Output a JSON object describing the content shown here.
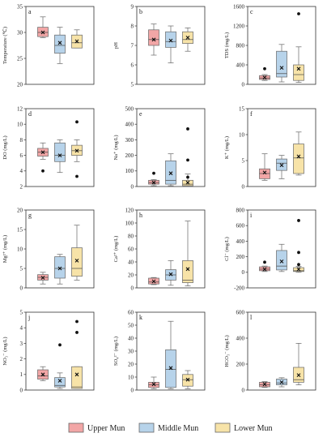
{
  "colors": {
    "upper": "#f2a6a6",
    "middle": "#b7d3ea",
    "lower": "#f7e3a8",
    "stroke": "#666666"
  },
  "legend": {
    "labels": [
      "Upper Mun",
      "Middle Mun",
      "Lower Mun"
    ]
  },
  "chart_data": [
    {
      "type": "box",
      "letter": "a",
      "ylabel": "Temperature (℃)",
      "ylim": [
        20,
        35
      ],
      "ticks": [
        20,
        25,
        30,
        35
      ],
      "categories": [
        "Upper Mun",
        "Middle Mun",
        "Lower Mun"
      ],
      "boxes": [
        {
          "min": 29.0,
          "q1": 29.2,
          "median": 30.0,
          "q3": 31.0,
          "max": 33.0,
          "mean": 30.0,
          "outliers": []
        },
        {
          "min": 24.0,
          "q1": 26.0,
          "median": 27.5,
          "q3": 29.5,
          "max": 31.0,
          "mean": 28.0,
          "outliers": []
        },
        {
          "min": 27.0,
          "q1": 27.0,
          "median": 28.0,
          "q3": 29.5,
          "max": 30.5,
          "mean": 28.3,
          "outliers": []
        }
      ]
    },
    {
      "type": "box",
      "letter": "b",
      "ylabel": "pH",
      "ylim": [
        5,
        9
      ],
      "ticks": [
        5,
        6,
        7,
        8,
        9
      ],
      "categories": [
        "Upper Mun",
        "Middle Mun",
        "Lower Mun"
      ],
      "boxes": [
        {
          "min": 6.5,
          "q1": 7.0,
          "median": 7.3,
          "q3": 7.8,
          "max": 8.1,
          "mean": 7.3,
          "outliers": []
        },
        {
          "min": 6.1,
          "q1": 6.9,
          "median": 7.2,
          "q3": 7.7,
          "max": 8.0,
          "mean": 7.25,
          "outliers": []
        },
        {
          "min": 6.7,
          "q1": 7.1,
          "median": 7.3,
          "q3": 7.7,
          "max": 7.9,
          "mean": 7.4,
          "outliers": []
        }
      ]
    },
    {
      "type": "box",
      "letter": "c",
      "ylabel": "TDS (mg/L)",
      "ylim": [
        0,
        1600
      ],
      "ticks": [
        0,
        400,
        800,
        1200,
        1600
      ],
      "categories": [
        "Upper Mun",
        "Middle Mun",
        "Lower Mun"
      ],
      "boxes": [
        {
          "min": 80,
          "q1": 100,
          "median": 130,
          "q3": 180,
          "max": 200,
          "mean": 140,
          "outliers": [
            320
          ]
        },
        {
          "min": 50,
          "q1": 150,
          "median": 220,
          "q3": 680,
          "max": 820,
          "mean": 340,
          "outliers": []
        },
        {
          "min": 40,
          "q1": 80,
          "median": 200,
          "q3": 400,
          "max": 770,
          "mean": 320,
          "outliers": [
            1450
          ]
        }
      ]
    },
    {
      "type": "box",
      "letter": "d",
      "ylabel": "DO (mg/L)",
      "ylim": [
        2,
        12
      ],
      "ticks": [
        2,
        4,
        6,
        8,
        10,
        12
      ],
      "categories": [
        "Upper Mun",
        "Middle Mun",
        "Lower Mun"
      ],
      "boxes": [
        {
          "min": 5.5,
          "q1": 5.9,
          "median": 6.4,
          "q3": 6.9,
          "max": 7.6,
          "mean": 6.4,
          "outliers": [
            4.0
          ]
        },
        {
          "min": 3.8,
          "q1": 5.2,
          "median": 6.0,
          "q3": 7.6,
          "max": 8.0,
          "mean": 6.0,
          "outliers": []
        },
        {
          "min": 5.2,
          "q1": 6.0,
          "median": 6.6,
          "q3": 7.3,
          "max": 8.0,
          "mean": 6.6,
          "outliers": [
            10.3,
            3.3
          ]
        }
      ]
    },
    {
      "type": "box",
      "letter": "e",
      "ylabel": "Na⁺ (mg/L)",
      "ylim": [
        0,
        500
      ],
      "ticks": [
        0,
        100,
        200,
        300,
        400,
        500
      ],
      "categories": [
        "Upper Mun",
        "Middle Mun",
        "Lower Mun"
      ],
      "boxes": [
        {
          "min": 5,
          "q1": 15,
          "median": 25,
          "q3": 40,
          "max": 45,
          "mean": 25,
          "outliers": [
            85
          ]
        },
        {
          "min": 5,
          "q1": 15,
          "median": 40,
          "q3": 165,
          "max": 210,
          "mean": 85,
          "outliers": []
        },
        {
          "min": 0,
          "q1": 5,
          "median": 15,
          "q3": 40,
          "max": 80,
          "mean": 25,
          "outliers": [
            370,
            170,
            60
          ]
        }
      ]
    },
    {
      "type": "box",
      "letter": "f",
      "ylabel": "K⁺ (mg/L)",
      "ylim": [
        0,
        15
      ],
      "ticks": [
        0,
        5,
        10,
        15
      ],
      "categories": [
        "Upper Mun",
        "Middle Mun",
        "Lower Mun"
      ],
      "boxes": [
        {
          "min": 1.2,
          "q1": 1.5,
          "median": 2.5,
          "q3": 3.4,
          "max": 6.3,
          "mean": 2.7,
          "outliers": []
        },
        {
          "min": 1.5,
          "q1": 3.1,
          "median": 4.5,
          "q3": 5.3,
          "max": 6.0,
          "mean": 4.1,
          "outliers": []
        },
        {
          "min": 2.2,
          "q1": 2.5,
          "median": 5.5,
          "q3": 8.2,
          "max": 10.5,
          "mean": 5.8,
          "outliers": []
        }
      ]
    },
    {
      "type": "box",
      "letter": "g",
      "ylabel": "Mg²⁺ (mg/L)",
      "ylim": [
        0,
        20
      ],
      "ticks": [
        0,
        5,
        10,
        15,
        20
      ],
      "categories": [
        "Upper Mun",
        "Middle Mun",
        "Lower Mun"
      ],
      "boxes": [
        {
          "min": 1.0,
          "q1": 2.0,
          "median": 2.7,
          "q3": 3.4,
          "max": 4.0,
          "mean": 2.6,
          "outliers": []
        },
        {
          "min": 1.0,
          "q1": 2.5,
          "median": 5.0,
          "q3": 8.0,
          "max": 8.6,
          "mean": 5.0,
          "outliers": []
        },
        {
          "min": 2.0,
          "q1": 3.0,
          "median": 5.0,
          "q3": 10.3,
          "max": 16.1,
          "mean": 7.0,
          "outliers": []
        }
      ]
    },
    {
      "type": "box",
      "letter": "h",
      "ylabel": "Ca²⁺ (mg/L)",
      "ylim": [
        0,
        120
      ],
      "ticks": [
        0,
        20,
        40,
        60,
        80,
        100,
        120
      ],
      "categories": [
        "Upper Mun",
        "Middle Mun",
        "Lower Mun"
      ],
      "boxes": [
        {
          "min": 5,
          "q1": 6,
          "median": 9,
          "q3": 15,
          "max": 16,
          "mean": 10,
          "outliers": []
        },
        {
          "min": 4,
          "q1": 12,
          "median": 20,
          "q3": 28,
          "max": 42,
          "mean": 21,
          "outliers": []
        },
        {
          "min": 3,
          "q1": 8,
          "median": 12,
          "q3": 42,
          "max": 103,
          "mean": 29,
          "outliers": []
        }
      ]
    },
    {
      "type": "box",
      "letter": "i",
      "ylabel": "Cl⁻ (mg/L)",
      "ylim": [
        -200,
        800
      ],
      "ticks": [
        -200,
        0,
        200,
        400,
        600,
        800
      ],
      "categories": [
        "Upper Mun",
        "Middle Mun",
        "Lower Mun"
      ],
      "boxes": [
        {
          "min": 10,
          "q1": 20,
          "median": 40,
          "q3": 70,
          "max": 80,
          "mean": 40,
          "outliers": [
            130
          ]
        },
        {
          "min": 10,
          "q1": 30,
          "median": 80,
          "q3": 280,
          "max": 360,
          "mean": 140,
          "outliers": []
        },
        {
          "min": 0,
          "q1": 10,
          "median": 20,
          "q3": 60,
          "max": 75,
          "mean": 40,
          "outliers": [
            665,
            255,
            100
          ]
        }
      ]
    },
    {
      "type": "box",
      "letter": "j",
      "ylabel": "NO₃⁻ (mg/L)",
      "ylim": [
        0,
        5
      ],
      "ticks": [
        0,
        1,
        2,
        3,
        4,
        5
      ],
      "categories": [
        "Upper Mun",
        "Middle Mun",
        "Lower Mun"
      ],
      "boxes": [
        {
          "min": 0.6,
          "q1": 0.7,
          "median": 0.9,
          "q3": 1.3,
          "max": 1.5,
          "mean": 1.0,
          "outliers": []
        },
        {
          "min": 0.1,
          "q1": 0.2,
          "median": 0.3,
          "q3": 0.8,
          "max": 1.1,
          "mean": 0.6,
          "outliers": [
            2.9
          ]
        },
        {
          "min": 0.1,
          "q1": 0.1,
          "median": 0.2,
          "q3": 1.5,
          "max": 1.5,
          "mean": 1.0,
          "outliers": [
            4.4,
            3.7
          ]
        }
      ]
    },
    {
      "type": "box",
      "letter": "k",
      "ylabel": "SO₄²⁻ (mg/L)",
      "ylim": [
        0,
        60
      ],
      "ticks": [
        0,
        10,
        20,
        30,
        40,
        50,
        60
      ],
      "categories": [
        "Upper Mun",
        "Middle Mun",
        "Lower Mun"
      ],
      "boxes": [
        {
          "min": 1,
          "q1": 2,
          "median": 4,
          "q3": 6,
          "max": 10,
          "mean": 4.5,
          "outliers": []
        },
        {
          "min": 1,
          "q1": 2,
          "median": 16,
          "q3": 31,
          "max": 53,
          "mean": 17,
          "outliers": []
        },
        {
          "min": 1,
          "q1": 3,
          "median": 8,
          "q3": 12,
          "max": 15,
          "mean": 8,
          "outliers": []
        }
      ]
    },
    {
      "type": "box",
      "letter": "l",
      "ylabel": "HCO₃⁻ (mg/L)",
      "ylim": [
        0,
        600
      ],
      "ticks": [
        0,
        200,
        400,
        600
      ],
      "categories": [
        "Upper Mun",
        "Middle Mun",
        "Lower Mun"
      ],
      "boxes": [
        {
          "min": 20,
          "q1": 25,
          "median": 40,
          "q3": 60,
          "max": 65,
          "mean": 45,
          "outliers": []
        },
        {
          "min": 25,
          "q1": 40,
          "median": 55,
          "q3": 85,
          "max": 95,
          "mean": 60,
          "outliers": []
        },
        {
          "min": 40,
          "q1": 60,
          "median": 80,
          "q3": 175,
          "max": 360,
          "mean": 115,
          "outliers": []
        }
      ]
    }
  ]
}
